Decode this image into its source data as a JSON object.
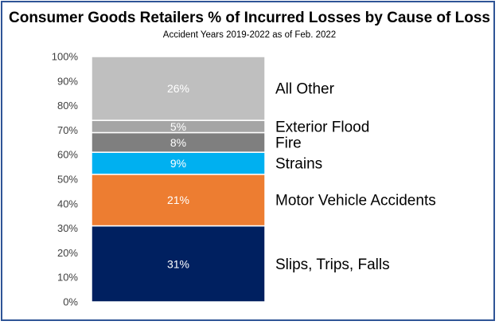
{
  "chart_data": {
    "type": "bar",
    "stacked": true,
    "title": "Consumer Goods Retailers % of Incurred Losses by Cause of Loss",
    "subtitle": "Accident Years 2019-2022 as of Feb. 2022",
    "xlabel": "",
    "ylabel": "",
    "ylim": [
      0,
      100
    ],
    "yticks": [
      "0%",
      "10%",
      "20%",
      "30%",
      "40%",
      "50%",
      "60%",
      "70%",
      "80%",
      "90%",
      "100%"
    ],
    "grid": false,
    "legend": "none",
    "series": [
      {
        "name": "Slips, Trips, Falls",
        "value": 31,
        "label": "31%",
        "color": "#002060",
        "label_color": "#ffffff"
      },
      {
        "name": "Motor Vehicle Accidents",
        "value": 21,
        "label": "21%",
        "color": "#ed7d31",
        "label_color": "#ffffff"
      },
      {
        "name": "Strains",
        "value": 9,
        "label": "9%",
        "color": "#00b0f0",
        "label_color": "#ffffff"
      },
      {
        "name": "Fire",
        "value": 8,
        "label": "8%",
        "color": "#7f7f7f",
        "label_color": "#ffffff"
      },
      {
        "name": "Exterior Flood",
        "value": 5,
        "label": "5%",
        "color": "#a5a5a5",
        "label_color": "#ffffff"
      },
      {
        "name": "All Other",
        "value": 26,
        "label": "26%",
        "color": "#bfbfbf",
        "label_color": "#ffffff"
      }
    ]
  }
}
